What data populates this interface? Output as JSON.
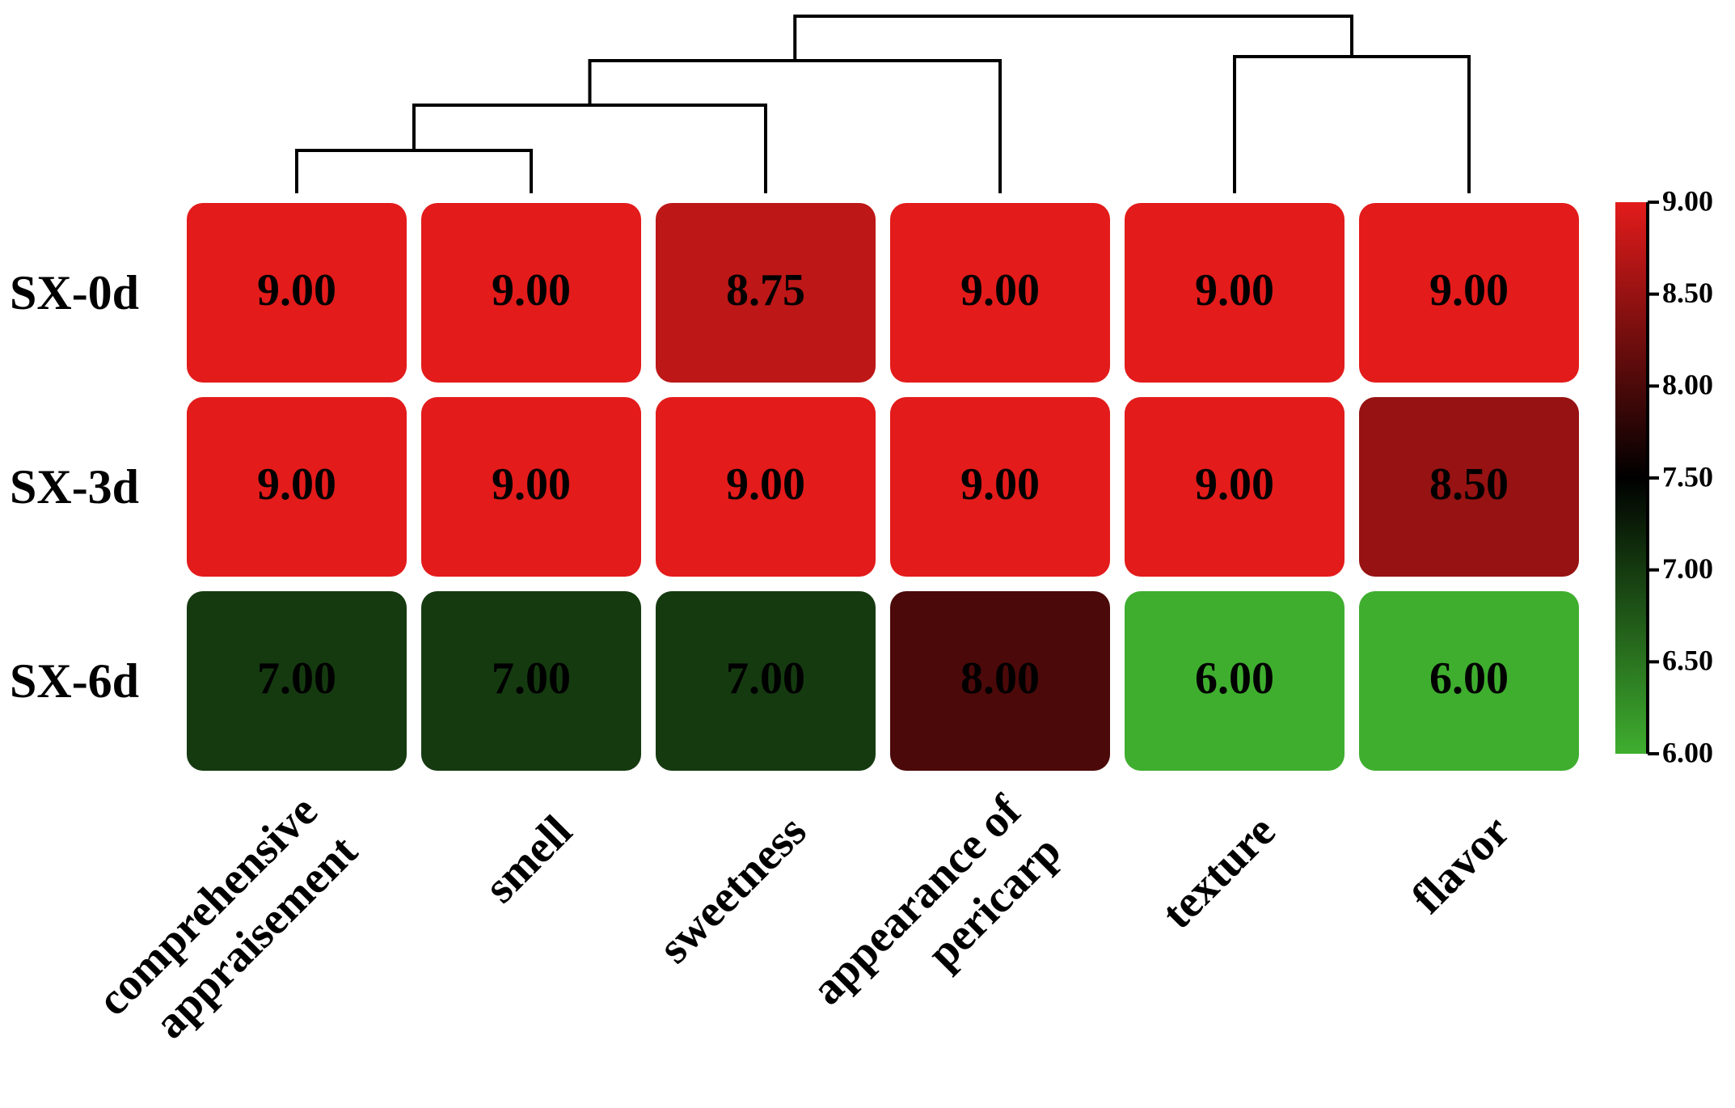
{
  "chart_data": {
    "type": "heatmap",
    "title": "",
    "rows": [
      "SX-0d",
      "SX-3d",
      "SX-6d"
    ],
    "columns": [
      [
        "comprehensive",
        "appraisement"
      ],
      [
        "smell"
      ],
      [
        "sweetness"
      ],
      [
        "appearance of",
        "pericarp"
      ],
      [
        "texture"
      ],
      [
        "flavor"
      ]
    ],
    "values": [
      [
        9.0,
        9.0,
        8.75,
        9.0,
        9.0,
        9.0
      ],
      [
        9.0,
        9.0,
        9.0,
        9.0,
        9.0,
        8.5
      ],
      [
        7.0,
        7.0,
        7.0,
        8.0,
        6.0,
        6.0
      ]
    ],
    "value_labels": [
      [
        "9.00",
        "9.00",
        "8.75",
        "9.00",
        "9.00",
        "9.00"
      ],
      [
        "9.00",
        "9.00",
        "9.00",
        "9.00",
        "9.00",
        "8.50"
      ],
      [
        "7.00",
        "7.00",
        "7.00",
        "8.00",
        "6.00",
        "6.00"
      ]
    ],
    "color_scale": {
      "min": 6.0,
      "max": 9.0,
      "stops": [
        {
          "value": 6.0,
          "color": "#3fae2f"
        },
        {
          "value": 7.5,
          "color": "#000000"
        },
        {
          "value": 9.0,
          "color": "#e31b1b"
        }
      ],
      "ticks": [
        "9.00",
        "8.50",
        "8.00",
        "7.50",
        "7.00",
        "6.50",
        "6.00"
      ]
    },
    "column_dendrogram": true,
    "legend_position": "right"
  }
}
